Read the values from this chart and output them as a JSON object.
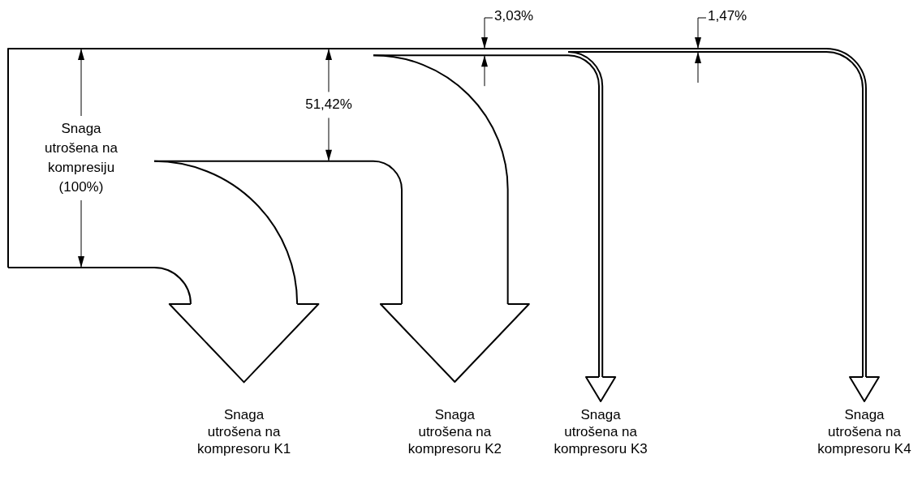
{
  "chart_data": {
    "type": "other",
    "color": "#000000",
    "categories": [
      "Snaga\nutrošena na\nkompresoru K1",
      "Snaga\nutrošena na\nkompresoru K2",
      "Snaga\nutrošena na\nkompresoru K3",
      "Snaga\nutrošena na\nkompresoru K4"
    ],
    "values": [
      100,
      51.42,
      3.03,
      1.47
    ],
    "value_labels": [
      "Snaga\nutrošena na\nkompresiju\n(100%)",
      "51,42%",
      "3,03%",
      "1,47%"
    ]
  }
}
